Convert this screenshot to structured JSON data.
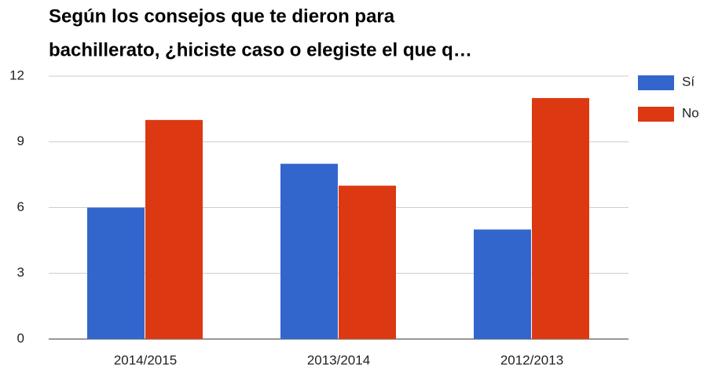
{
  "chart_data": {
    "type": "bar",
    "title": [
      "Según los consejos que te dieron para",
      "bachillerato, ¿hiciste caso o elegiste el que q…"
    ],
    "categories": [
      "2014/2015",
      "2013/2014",
      "2012/2013"
    ],
    "series": [
      {
        "name": "Sí",
        "color": "#3366cc",
        "values": [
          6,
          8,
          5
        ]
      },
      {
        "name": "No",
        "color": "#dc3912",
        "values": [
          10,
          7,
          11
        ]
      }
    ],
    "ylim": [
      0,
      12
    ],
    "yticks": [
      0,
      3,
      6,
      9,
      12
    ],
    "grid": true,
    "legend": "right"
  }
}
